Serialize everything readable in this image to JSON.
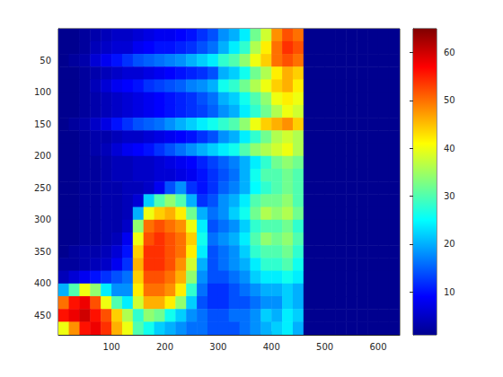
{
  "chart_data": {
    "type": "heatmap",
    "x": [
      10,
      30,
      50,
      70,
      90,
      110,
      130,
      150,
      170,
      190,
      210,
      230,
      250,
      270,
      290,
      310,
      330,
      350,
      370,
      390,
      410,
      430,
      450,
      470,
      490,
      510,
      530,
      550,
      570,
      590,
      610,
      630
    ],
    "y": [
      10,
      30,
      50,
      70,
      90,
      110,
      130,
      150,
      170,
      190,
      210,
      230,
      250,
      270,
      290,
      310,
      330,
      350,
      370,
      390,
      410,
      430,
      450,
      470
    ],
    "values": [
      [
        1,
        1,
        2,
        3,
        4,
        5,
        5,
        6,
        7,
        8,
        8,
        9,
        10,
        12,
        14,
        18,
        20,
        24,
        32,
        38,
        48,
        52,
        50,
        1,
        1,
        1,
        1,
        1,
        1,
        1,
        1,
        1
      ],
      [
        1,
        1,
        2,
        4,
        5,
        6,
        6,
        8,
        9,
        10,
        10,
        11,
        12,
        14,
        16,
        20,
        24,
        28,
        36,
        42,
        50,
        54,
        52,
        1,
        1,
        1,
        1,
        1,
        1,
        1,
        1,
        1
      ],
      [
        1,
        2,
        3,
        6,
        8,
        10,
        12,
        14,
        15,
        16,
        17,
        18,
        20,
        22,
        24,
        28,
        30,
        34,
        40,
        44,
        50,
        52,
        50,
        1,
        1,
        1,
        1,
        1,
        1,
        1,
        1,
        1
      ],
      [
        1,
        1,
        2,
        3,
        4,
        5,
        6,
        6,
        7,
        8,
        9,
        10,
        11,
        12,
        14,
        20,
        22,
        26,
        32,
        36,
        42,
        46,
        44,
        1,
        1,
        1,
        1,
        1,
        1,
        1,
        1,
        1
      ],
      [
        1,
        1,
        2,
        4,
        6,
        8,
        9,
        10,
        12,
        13,
        14,
        15,
        17,
        18,
        20,
        26,
        28,
        32,
        36,
        40,
        44,
        46,
        42,
        1,
        1,
        1,
        1,
        1,
        1,
        1,
        1,
        1
      ],
      [
        1,
        1,
        2,
        3,
        4,
        5,
        6,
        7,
        8,
        9,
        10,
        11,
        12,
        14,
        16,
        20,
        22,
        26,
        30,
        34,
        40,
        42,
        40,
        1,
        1,
        1,
        1,
        1,
        1,
        1,
        1,
        1
      ],
      [
        1,
        1,
        2,
        3,
        4,
        5,
        6,
        7,
        8,
        9,
        10,
        11,
        12,
        13,
        15,
        18,
        20,
        24,
        28,
        32,
        36,
        40,
        38,
        1,
        1,
        1,
        1,
        1,
        1,
        1,
        1,
        1
      ],
      [
        1,
        2,
        3,
        5,
        7,
        10,
        12,
        14,
        15,
        16,
        18,
        20,
        22,
        24,
        26,
        28,
        30,
        34,
        40,
        44,
        46,
        48,
        44,
        1,
        1,
        1,
        1,
        1,
        1,
        1,
        1,
        1
      ],
      [
        1,
        1,
        2,
        3,
        3,
        4,
        5,
        5,
        6,
        7,
        8,
        9,
        10,
        12,
        14,
        18,
        20,
        24,
        28,
        32,
        36,
        38,
        36,
        1,
        1,
        1,
        1,
        1,
        1,
        1,
        1,
        1
      ],
      [
        1,
        1,
        2,
        3,
        4,
        6,
        8,
        9,
        10,
        12,
        14,
        16,
        18,
        20,
        22,
        24,
        26,
        30,
        34,
        36,
        38,
        40,
        36,
        1,
        1,
        1,
        1,
        1,
        1,
        1,
        1,
        1
      ],
      [
        1,
        1,
        2,
        2,
        3,
        4,
        4,
        5,
        5,
        6,
        7,
        8,
        9,
        11,
        13,
        15,
        17,
        20,
        24,
        28,
        32,
        34,
        32,
        1,
        1,
        1,
        1,
        1,
        1,
        1,
        1,
        1
      ],
      [
        1,
        1,
        2,
        2,
        3,
        4,
        4,
        5,
        5,
        6,
        6,
        7,
        8,
        10,
        12,
        14,
        16,
        20,
        26,
        30,
        30,
        32,
        30,
        1,
        1,
        1,
        1,
        1,
        1,
        1,
        1,
        1
      ],
      [
        1,
        1,
        2,
        2,
        3,
        3,
        4,
        4,
        5,
        8,
        14,
        18,
        12,
        10,
        12,
        15,
        17,
        20,
        25,
        28,
        30,
        32,
        30,
        1,
        1,
        1,
        1,
        1,
        1,
        1,
        1,
        1
      ],
      [
        1,
        1,
        2,
        2,
        3,
        3,
        4,
        6,
        22,
        30,
        34,
        30,
        20,
        12,
        14,
        18,
        20,
        24,
        30,
        32,
        32,
        34,
        30,
        1,
        1,
        1,
        1,
        1,
        1,
        1,
        1,
        1
      ],
      [
        1,
        1,
        2,
        2,
        3,
        3,
        4,
        20,
        40,
        44,
        46,
        42,
        32,
        20,
        16,
        18,
        22,
        26,
        32,
        36,
        34,
        36,
        32,
        1,
        1,
        1,
        1,
        1,
        1,
        1,
        1,
        1
      ],
      [
        1,
        1,
        2,
        2,
        3,
        3,
        5,
        34,
        50,
        52,
        50,
        48,
        40,
        24,
        14,
        16,
        18,
        22,
        28,
        30,
        30,
        32,
        28,
        1,
        1,
        1,
        1,
        1,
        1,
        1,
        1,
        1
      ],
      [
        1,
        1,
        2,
        2,
        3,
        4,
        8,
        40,
        52,
        54,
        52,
        50,
        44,
        26,
        16,
        18,
        20,
        24,
        30,
        34,
        32,
        34,
        30,
        1,
        1,
        1,
        1,
        1,
        1,
        1,
        1,
        1
      ],
      [
        1,
        2,
        3,
        3,
        4,
        6,
        10,
        44,
        54,
        54,
        52,
        50,
        42,
        24,
        14,
        16,
        18,
        22,
        28,
        30,
        30,
        32,
        28,
        1,
        1,
        1,
        1,
        1,
        1,
        1,
        1,
        1
      ],
      [
        2,
        2,
        3,
        4,
        5,
        8,
        12,
        46,
        54,
        54,
        52,
        48,
        38,
        20,
        14,
        16,
        18,
        20,
        24,
        28,
        28,
        30,
        26,
        1,
        1,
        1,
        1,
        1,
        1,
        1,
        1,
        1
      ],
      [
        4,
        6,
        8,
        10,
        12,
        14,
        16,
        44,
        52,
        52,
        50,
        46,
        34,
        18,
        14,
        14,
        16,
        18,
        22,
        24,
        24,
        26,
        24,
        1,
        1,
        1,
        1,
        1,
        1,
        1,
        1,
        1
      ],
      [
        20,
        30,
        40,
        34,
        24,
        18,
        18,
        42,
        50,
        50,
        48,
        42,
        28,
        16,
        12,
        12,
        14,
        16,
        18,
        20,
        20,
        22,
        20,
        1,
        1,
        1,
        1,
        1,
        1,
        1,
        1,
        1
      ],
      [
        50,
        56,
        58,
        52,
        40,
        30,
        24,
        38,
        46,
        46,
        42,
        34,
        22,
        14,
        12,
        12,
        14,
        14,
        16,
        18,
        18,
        22,
        20,
        1,
        1,
        1,
        1,
        1,
        1,
        1,
        1,
        1
      ],
      [
        56,
        58,
        60,
        56,
        52,
        44,
        36,
        28,
        34,
        32,
        26,
        22,
        18,
        16,
        14,
        14,
        16,
        16,
        18,
        22,
        20,
        24,
        22,
        1,
        1,
        1,
        1,
        1,
        1,
        1,
        1,
        1
      ],
      [
        40,
        48,
        56,
        58,
        54,
        46,
        40,
        30,
        26,
        22,
        20,
        18,
        16,
        16,
        14,
        14,
        14,
        16,
        18,
        20,
        22,
        24,
        20,
        1,
        1,
        1,
        1,
        1,
        1,
        1,
        1,
        1
      ]
    ],
    "xlim": [
      0.5,
      640.5
    ],
    "ylim": [
      480.5,
      0.5
    ],
    "xticks": [
      100,
      200,
      300,
      400,
      500,
      600
    ],
    "yticks": [
      50,
      100,
      150,
      200,
      250,
      300,
      350,
      400,
      450
    ],
    "colorbar": {
      "range": [
        1,
        65
      ],
      "ticks": [
        10,
        20,
        30,
        40,
        50,
        60
      ]
    }
  }
}
